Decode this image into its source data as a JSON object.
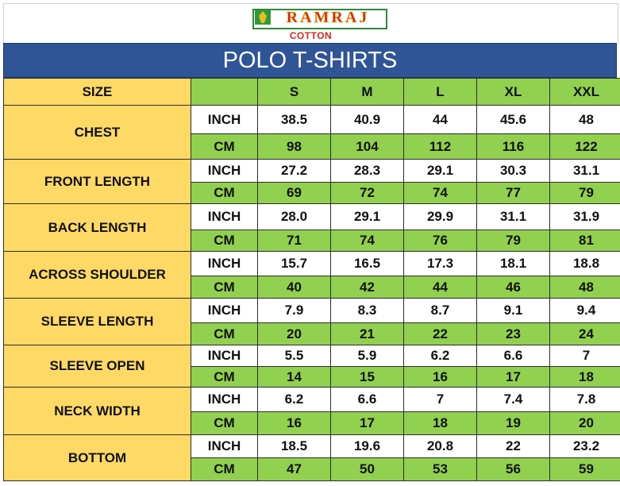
{
  "brand": {
    "name": "RAMRAJ",
    "sub": "COTTON"
  },
  "title": "POLO T-SHIRTS",
  "header": {
    "size_label": "SIZE",
    "unit_blank": "",
    "sizes": [
      "S",
      "M",
      "L",
      "XL",
      "XXL"
    ]
  },
  "units": {
    "inch": "INCH",
    "cm": "CM"
  },
  "colors": {
    "title_bg": "#2f5597",
    "label_bg": "#ffd966",
    "green": "#92d050",
    "brand_red": "#d9261c"
  },
  "rows": [
    {
      "label": "CHEST",
      "inch": [
        "38.5",
        "40.9",
        "44",
        "45.6",
        "48"
      ],
      "cm": [
        "98",
        "104",
        "112",
        "116",
        "122"
      ]
    },
    {
      "label": "FRONT LENGTH",
      "inch": [
        "27.2",
        "28.3",
        "29.1",
        "30.3",
        "31.1"
      ],
      "cm": [
        "69",
        "72",
        "74",
        "77",
        "79"
      ]
    },
    {
      "label": "BACK LENGTH",
      "inch": [
        "28.0",
        "29.1",
        "29.9",
        "31.1",
        "31.9"
      ],
      "cm": [
        "71",
        "74",
        "76",
        "79",
        "81"
      ]
    },
    {
      "label": "ACROSS SHOULDER",
      "inch": [
        "15.7",
        "16.5",
        "17.3",
        "18.1",
        "18.8"
      ],
      "cm": [
        "40",
        "42",
        "44",
        "46",
        "48"
      ]
    },
    {
      "label": "SLEEVE LENGTH",
      "inch": [
        "7.9",
        "8.3",
        "8.7",
        "9.1",
        "9.4"
      ],
      "cm": [
        "20",
        "21",
        "22",
        "23",
        "24"
      ]
    },
    {
      "label": "SLEEVE OPEN",
      "inch": [
        "5.5",
        "5.9",
        "6.2",
        "6.6",
        "7"
      ],
      "cm": [
        "14",
        "15",
        "16",
        "17",
        "18"
      ]
    },
    {
      "label": "NECK WIDTH",
      "inch": [
        "6.2",
        "6.6",
        "7",
        "7.4",
        "7.8"
      ],
      "cm": [
        "16",
        "17",
        "18",
        "19",
        "20"
      ]
    },
    {
      "label": "BOTTOM",
      "inch": [
        "18.5",
        "19.6",
        "20.8",
        "22",
        "23.2"
      ],
      "cm": [
        "47",
        "50",
        "53",
        "56",
        "59"
      ]
    }
  ]
}
